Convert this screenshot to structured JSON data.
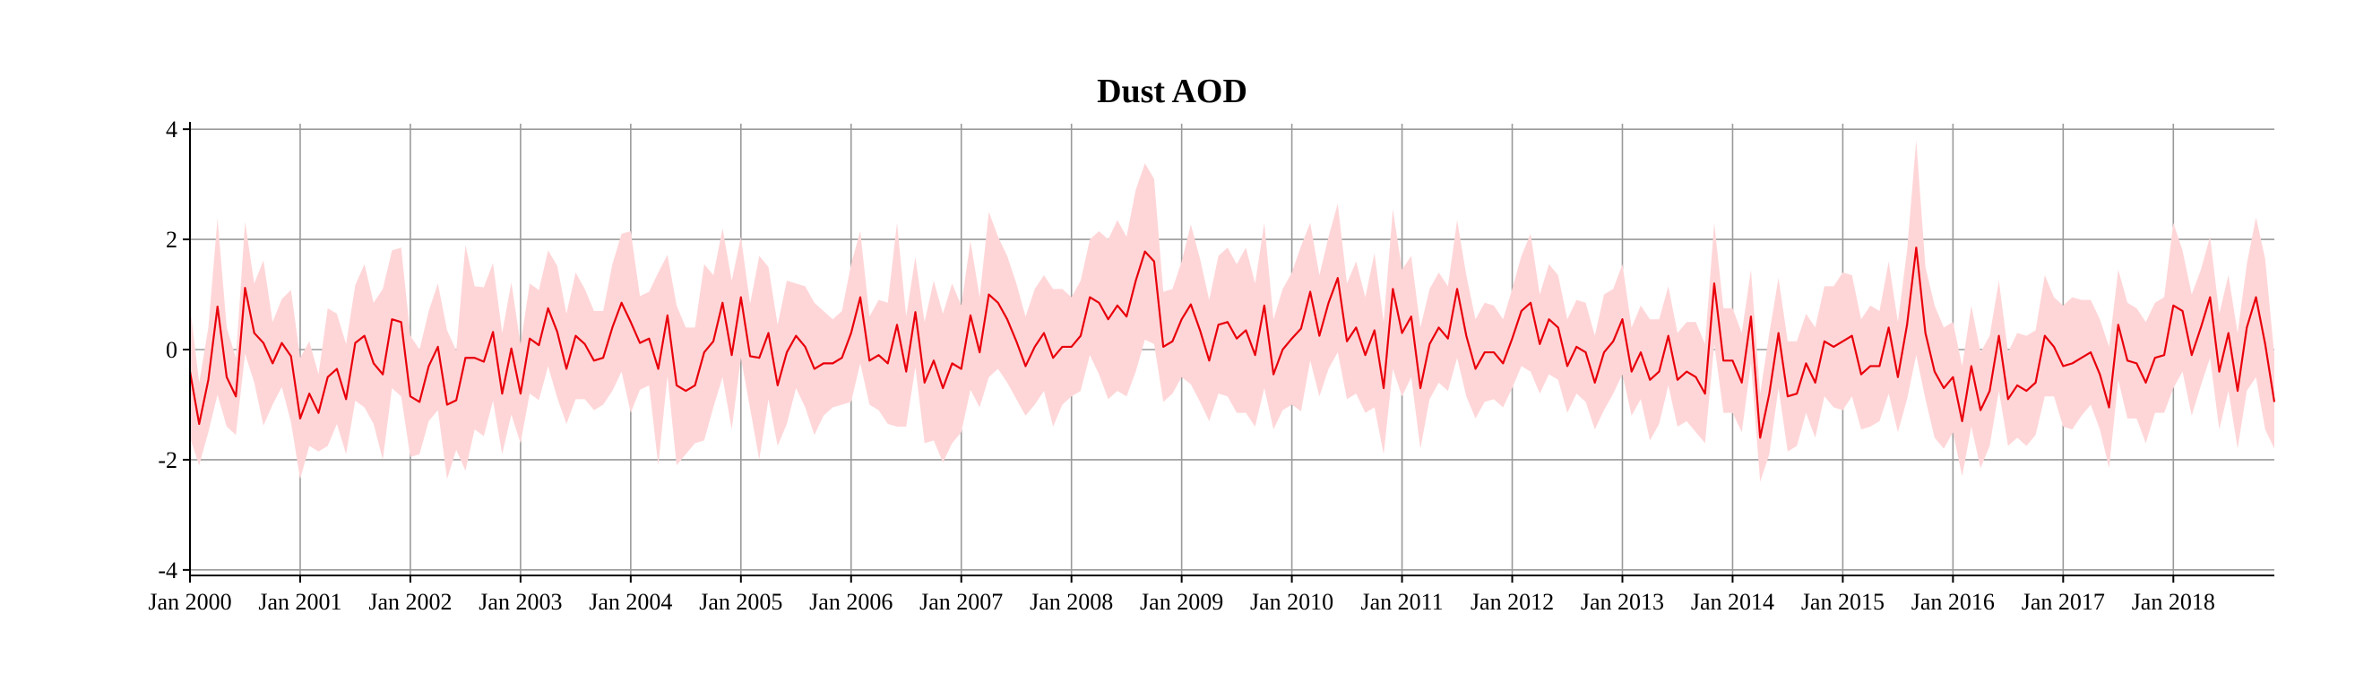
{
  "chart_data": {
    "type": "line",
    "title": "Dust AOD",
    "xlabel": "",
    "ylabel": "",
    "x_start": "2000-01",
    "x_end": "2018-12",
    "x_frequency": "monthly",
    "xlim": [
      "2000-01",
      "2018-12"
    ],
    "ylim": [
      -4.1,
      4.1
    ],
    "y_ticks": [
      4,
      2,
      0,
      -2,
      -4
    ],
    "y_tick_labels": [
      "4",
      "2",
      "0",
      "-2",
      "-4"
    ],
    "x_ticks": [
      "2000-01",
      "2001-01",
      "2002-01",
      "2003-01",
      "2004-01",
      "2005-01",
      "2006-01",
      "2007-01",
      "2008-01",
      "2009-01",
      "2010-01",
      "2011-01",
      "2012-01",
      "2013-01",
      "2014-01",
      "2015-01",
      "2016-01",
      "2017-01",
      "2018-01"
    ],
    "x_tick_labels": [
      "Jan 2000",
      "Jan 2001",
      "Jan 2002",
      "Jan 2003",
      "Jan 2004",
      "Jan 2005",
      "Jan 2006",
      "Jan 2007",
      "Jan 2008",
      "Jan 2009",
      "Jan 2010",
      "Jan 2011",
      "Jan 2012",
      "Jan 2013",
      "Jan 2014",
      "Jan 2015",
      "Jan 2016",
      "Jan 2017",
      "Jan 2018"
    ],
    "grid": true,
    "legend": "none",
    "series": [
      {
        "color": "#e8000b",
        "band_color": "#ffd6d8",
        "values": [
          -0.4,
          -1.35,
          -0.55,
          0.78,
          -0.5,
          -0.85,
          1.12,
          0.3,
          0.12,
          -0.25,
          0.12,
          -0.12,
          -1.25,
          -0.8,
          -1.15,
          -0.5,
          -0.35,
          -0.9,
          0.12,
          0.25,
          -0.25,
          -0.45,
          0.55,
          0.5,
          -0.85,
          -0.95,
          -0.3,
          0.05,
          -1.0,
          -0.92,
          -0.15,
          -0.15,
          -0.22,
          0.32,
          -0.8,
          0.02,
          -0.8,
          0.2,
          0.08,
          0.75,
          0.32,
          -0.35,
          0.25,
          0.1,
          -0.2,
          -0.15,
          0.4,
          0.85,
          0.5,
          0.12,
          0.2,
          -0.35,
          0.62,
          -0.65,
          -0.75,
          -0.65,
          -0.05,
          0.15,
          0.85,
          -0.1,
          0.95,
          -0.12,
          -0.15,
          0.3,
          -0.65,
          -0.05,
          0.25,
          0.05,
          -0.35,
          -0.25,
          -0.25,
          -0.15,
          0.3,
          0.95,
          -0.2,
          -0.1,
          -0.25,
          0.45,
          -0.4,
          0.68,
          -0.6,
          -0.2,
          -0.7,
          -0.25,
          -0.35,
          0.62,
          -0.05,
          1.0,
          0.85,
          0.55,
          0.15,
          -0.3,
          0.05,
          0.3,
          -0.15,
          0.05,
          0.05,
          0.25,
          0.95,
          0.85,
          0.55,
          0.8,
          0.6,
          1.25,
          1.78,
          1.6,
          0.05,
          0.15,
          0.55,
          0.82,
          0.35,
          -0.2,
          0.45,
          0.5,
          0.2,
          0.35,
          -0.1,
          0.8,
          -0.45,
          0.0,
          0.2,
          0.38,
          1.05,
          0.25,
          0.85,
          1.3,
          0.15,
          0.4,
          -0.1,
          0.35,
          -0.7,
          1.1,
          0.3,
          0.6,
          -0.7,
          0.1,
          0.4,
          0.2,
          1.1,
          0.25,
          -0.35,
          -0.05,
          -0.05,
          -0.25,
          0.2,
          0.7,
          0.85,
          0.1,
          0.55,
          0.4,
          -0.3,
          0.05,
          -0.05,
          -0.6,
          -0.05,
          0.15,
          0.55,
          -0.4,
          -0.05,
          -0.55,
          -0.4,
          0.25,
          -0.55,
          -0.4,
          -0.5,
          -0.8,
          1.2,
          -0.2,
          -0.2,
          -0.6,
          0.6,
          -1.6,
          -0.8,
          0.3,
          -0.85,
          -0.8,
          -0.25,
          -0.6,
          0.15,
          0.05,
          0.15,
          0.25,
          -0.45,
          -0.3,
          -0.3,
          0.4,
          -0.5,
          0.45,
          1.85,
          0.3,
          -0.4,
          -0.7,
          -0.5,
          -1.3,
          -0.3,
          -1.1,
          -0.75,
          0.25,
          -0.9,
          -0.65,
          -0.75,
          -0.6,
          0.25,
          0.05,
          -0.3,
          -0.25,
          -0.15,
          -0.05,
          -0.45,
          -1.05,
          0.45,
          -0.2,
          -0.25,
          -0.6,
          -0.15,
          -0.1,
          0.8,
          0.7,
          -0.1,
          0.4,
          0.95,
          -0.4,
          0.3,
          -0.75,
          0.4,
          0.95,
          0.1,
          -0.95
        ],
        "band_half_width": [
          1.2,
          0.75,
          0.95,
          1.6,
          0.9,
          0.7,
          1.2,
          0.9,
          1.5,
          0.75,
          0.8,
          1.2,
          1.1,
          0.95,
          0.7,
          1.25,
          1.0,
          1.0,
          1.05,
          1.3,
          1.1,
          1.55,
          1.25,
          1.35,
          1.1,
          0.95,
          1.0,
          1.15,
          1.35,
          0.9,
          2.05,
          1.3,
          1.35,
          1.25,
          1.1,
          1.2,
          0.9,
          1.0,
          1.0,
          1.05,
          1.2,
          1.0,
          1.15,
          1.0,
          0.9,
          0.85,
          1.15,
          1.25,
          1.65,
          0.85,
          0.85,
          1.75,
          1.1,
          1.45,
          1.15,
          1.05,
          1.6,
          1.2,
          1.35,
          1.35,
          1.1,
          0.95,
          1.85,
          1.2,
          1.1,
          1.3,
          0.95,
          1.1,
          1.2,
          0.95,
          0.8,
          0.85,
          1.25,
          1.2,
          0.8,
          1.0,
          1.1,
          1.85,
          1.0,
          1.0,
          1.1,
          1.45,
          1.35,
          1.45,
          1.15,
          1.35,
          1.0,
          1.5,
          1.2,
          1.15,
          1.05,
          0.9,
          1.05,
          1.05,
          1.25,
          1.05,
          0.9,
          1.0,
          1.05,
          1.3,
          1.45,
          1.55,
          1.45,
          1.65,
          1.6,
          1.5,
          1.0,
          0.95,
          1.05,
          1.45,
          1.3,
          1.1,
          1.25,
          1.35,
          1.35,
          1.5,
          1.3,
          1.5,
          1.0,
          1.1,
          1.2,
          1.5,
          1.25,
          1.1,
          1.2,
          1.35,
          1.05,
          1.2,
          1.05,
          1.4,
          1.2,
          1.45,
          1.15,
          1.1,
          1.1,
          1.0,
          1.0,
          0.95,
          1.25,
          1.1,
          0.9,
          0.9,
          0.85,
          0.8,
          0.9,
          1.0,
          1.25,
          0.9,
          1.0,
          0.95,
          0.85,
          0.85,
          0.9,
          0.85,
          1.05,
          0.95,
          1.0,
          0.8,
          0.85,
          1.1,
          0.95,
          0.9,
          0.85,
          0.9,
          1.0,
          0.9,
          1.1,
          0.95,
          0.95,
          0.9,
          0.85,
          0.8,
          1.1,
          1.0,
          1.0,
          0.95,
          0.9,
          1.0,
          1.0,
          1.1,
          1.25,
          1.1,
          1.0,
          1.1,
          1.0,
          1.2,
          1.0,
          1.35,
          1.95,
          1.2,
          1.2,
          1.1,
          1.0,
          1.0,
          1.1,
          1.05,
          1.0,
          1.0,
          0.85,
          0.95,
          1.0,
          0.95,
          1.1,
          0.9,
          1.1,
          1.2,
          1.05,
          0.95,
          1.0,
          1.1,
          1.0,
          1.05,
          1.0,
          1.1,
          1.0,
          1.05,
          1.5,
          1.1,
          1.1,
          1.05,
          1.1,
          1.05,
          1.05,
          1.05,
          1.15,
          1.45,
          1.55,
          0.85
        ]
      }
    ]
  }
}
